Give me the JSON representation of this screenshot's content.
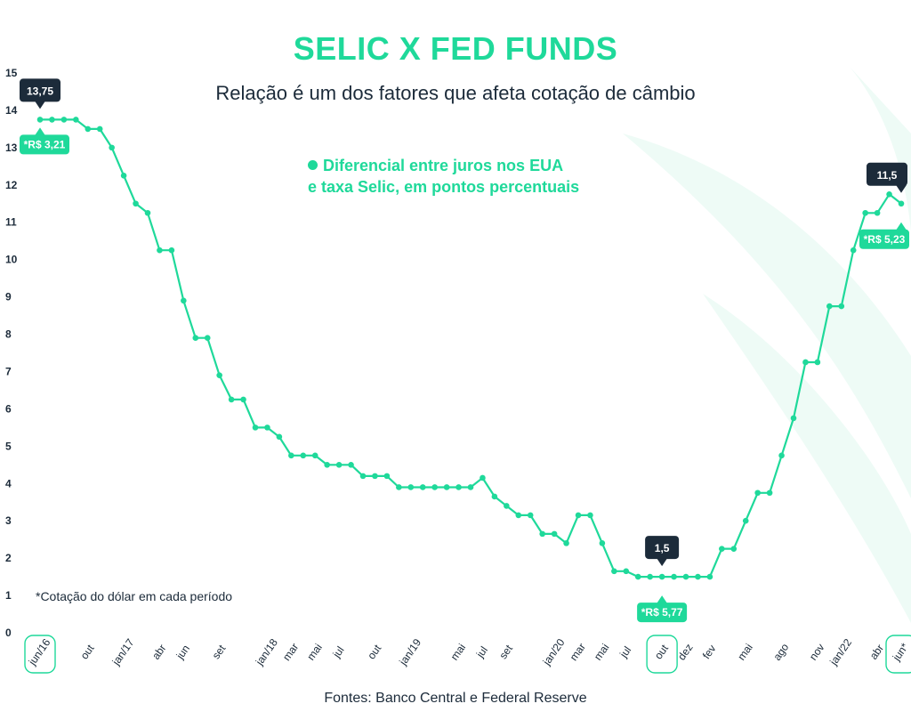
{
  "header": {
    "title": "SELIC X FED FUNDS",
    "subtitle": "Relação é um dos fatores que afeta cotação de câmbio"
  },
  "legend": {
    "line1": "Diferencial entre juros nos EUA",
    "line2": "e taxa Selic, em pontos percentuais"
  },
  "footnote": "*Cotação do dólar em cada período",
  "source": "Fontes: Banco Central e Federal Reserve",
  "colors": {
    "line": "#1fd99a",
    "dark_callout": "#1c2b3a",
    "text": "#1c2b3a",
    "watermark": "#eefbf6"
  },
  "chart_data": {
    "type": "line",
    "title": "SELIC X FED FUNDS",
    "xlabel": "",
    "ylabel": "",
    "ylim": [
      0,
      15
    ],
    "yticks": [
      0,
      1,
      2,
      3,
      4,
      5,
      6,
      7,
      8,
      9,
      10,
      11,
      12,
      13,
      14,
      15
    ],
    "grid": false,
    "legend_position": "top-center",
    "xtick_labels": [
      {
        "index": 0,
        "label": "jun/16",
        "boxed": true
      },
      {
        "index": 4,
        "label": "out",
        "boxed": false
      },
      {
        "index": 7,
        "label": "jan/17",
        "boxed": false
      },
      {
        "index": 10,
        "label": "abr",
        "boxed": false
      },
      {
        "index": 12,
        "label": "jun",
        "boxed": false
      },
      {
        "index": 15,
        "label": "set",
        "boxed": false
      },
      {
        "index": 19,
        "label": "jan/18",
        "boxed": false
      },
      {
        "index": 21,
        "label": "mar",
        "boxed": false
      },
      {
        "index": 23,
        "label": "mai",
        "boxed": false
      },
      {
        "index": 25,
        "label": "jul",
        "boxed": false
      },
      {
        "index": 28,
        "label": "out",
        "boxed": false
      },
      {
        "index": 31,
        "label": "jan/19",
        "boxed": false
      },
      {
        "index": 35,
        "label": "mai",
        "boxed": false
      },
      {
        "index": 37,
        "label": "jul",
        "boxed": false
      },
      {
        "index": 39,
        "label": "set",
        "boxed": false
      },
      {
        "index": 43,
        "label": "jan/20",
        "boxed": false
      },
      {
        "index": 45,
        "label": "mar",
        "boxed": false
      },
      {
        "index": 47,
        "label": "mai",
        "boxed": false
      },
      {
        "index": 49,
        "label": "jul",
        "boxed": false
      },
      {
        "index": 52,
        "label": "out",
        "boxed": true
      },
      {
        "index": 54,
        "label": "dez",
        "boxed": false
      },
      {
        "index": 56,
        "label": "fev",
        "boxed": false
      },
      {
        "index": 59,
        "label": "mai",
        "boxed": false
      },
      {
        "index": 62,
        "label": "ago",
        "boxed": false
      },
      {
        "index": 65,
        "label": "nov",
        "boxed": false
      },
      {
        "index": 67,
        "label": "jan/22",
        "boxed": false
      },
      {
        "index": 70,
        "label": "abr",
        "boxed": false
      },
      {
        "index": 72,
        "label": "jun*",
        "boxed": true
      }
    ],
    "series": [
      {
        "values": [
          13.75,
          13.75,
          13.75,
          13.75,
          13.5,
          13.5,
          13.0,
          12.25,
          11.5,
          11.25,
          10.25,
          10.25,
          8.9,
          7.9,
          7.9,
          6.9,
          6.25,
          6.25,
          5.5,
          5.5,
          5.25,
          4.75,
          4.75,
          4.75,
          4.5,
          4.5,
          4.5,
          4.2,
          4.2,
          4.2,
          3.9,
          3.9,
          3.9,
          3.9,
          3.9,
          3.9,
          3.9,
          4.15,
          3.65,
          3.4,
          3.15,
          3.15,
          2.65,
          2.65,
          2.4,
          3.15,
          3.15,
          2.4,
          1.65,
          1.65,
          1.5,
          1.5,
          1.5,
          1.5,
          1.5,
          1.5,
          1.5,
          2.25,
          2.25,
          3.0,
          3.75,
          3.75,
          4.75,
          5.75,
          7.25,
          7.25,
          8.75,
          8.75,
          10.25,
          11.25,
          11.25,
          11.75,
          11.5
        ]
      }
    ],
    "annotations": [
      {
        "index": 0,
        "value": "13,75",
        "dollar": "*R$ 3,21"
      },
      {
        "index": 52,
        "value": "1,5",
        "dollar": "*R$ 5,77"
      },
      {
        "index": 72,
        "value": "11,5",
        "dollar": "*R$ 5,23"
      }
    ]
  }
}
